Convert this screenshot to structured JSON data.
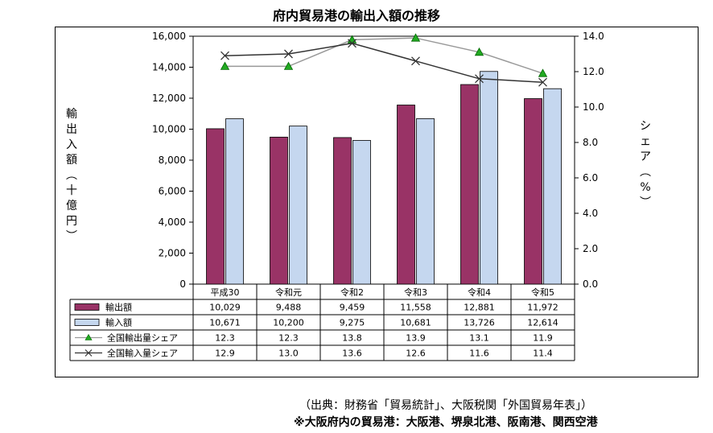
{
  "chart_data": {
    "type": "bar",
    "title": "府内貿易港の輸出入額の推移",
    "categories": [
      "平成30",
      "令和元",
      "令和2",
      "令和3",
      "令和4",
      "令和5"
    ],
    "ylabel": "輸出入額（十億円）",
    "y2label": "シェア（%）",
    "ylim": [
      0,
      16000
    ],
    "y2lim": [
      0,
      14
    ],
    "yticks": [
      "0",
      "2,000",
      "4,000",
      "6,000",
      "8,000",
      "10,000",
      "12,000",
      "14,000",
      "16,000"
    ],
    "y2ticks": [
      "0.0",
      "2.0",
      "4.0",
      "6.0",
      "8.0",
      "10.0",
      "12.0",
      "14.0"
    ],
    "series": [
      {
        "name": "輸出額",
        "kind": "bar",
        "color": "#993366",
        "values": [
          10029,
          9488,
          9459,
          11558,
          12881,
          11972
        ],
        "labels": [
          "10,029",
          "9,488",
          "9,459",
          "11,558",
          "12,881",
          "11,972"
        ]
      },
      {
        "name": "輸入額",
        "kind": "bar",
        "color": "#c5d7ef",
        "values": [
          10671,
          10200,
          9275,
          10681,
          13726,
          12614
        ],
        "labels": [
          "10,671",
          "10,200",
          "9,275",
          "10,681",
          "13,726",
          "12,614"
        ]
      },
      {
        "name": "全国輸出量シェア",
        "kind": "line",
        "axis": "right",
        "color": "#999999",
        "marker": "triangle",
        "values": [
          12.3,
          12.3,
          13.8,
          13.9,
          13.1,
          11.9
        ],
        "labels": [
          "12.3",
          "12.3",
          "13.8",
          "13.9",
          "13.1",
          "11.9"
        ]
      },
      {
        "name": "全国輸入量シェア",
        "kind": "line",
        "axis": "right",
        "color": "#333333",
        "marker": "x",
        "values": [
          12.9,
          13.0,
          13.6,
          12.6,
          11.6,
          11.4
        ],
        "labels": [
          "12.9",
          "13.0",
          "13.6",
          "12.6",
          "11.6",
          "11.4"
        ]
      }
    ]
  },
  "notes": {
    "source": "（出典：財務省「貿易統計」、大阪税関「外国貿易年表」）",
    "ports": "※大阪府内の貿易港：大阪港、堺泉北港、阪南港、関西空港"
  }
}
